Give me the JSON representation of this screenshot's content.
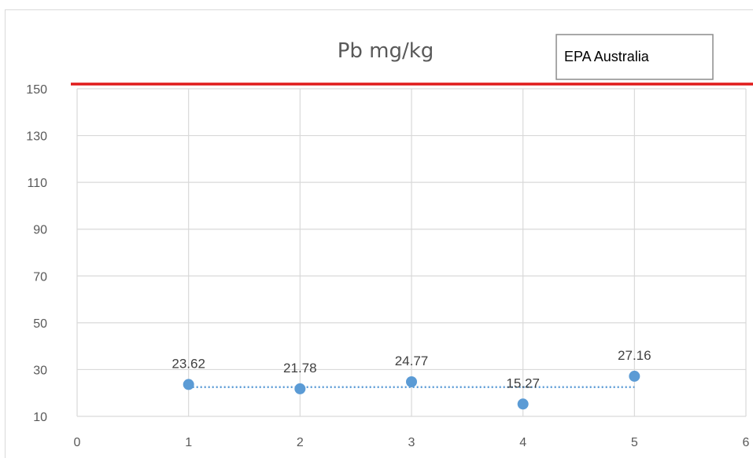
{
  "chart_data": {
    "type": "scatter",
    "title": "Pb mg/kg",
    "xlabel": "",
    "ylabel": "",
    "xlim": [
      0,
      6
    ],
    "ylim": [
      10,
      150
    ],
    "xticks": [
      0,
      1,
      2,
      3,
      4,
      5,
      6
    ],
    "yticks": [
      10,
      30,
      50,
      70,
      90,
      110,
      130,
      150
    ],
    "grid": true,
    "series": [
      {
        "x": [
          1,
          2,
          3,
          4,
          5
        ],
        "y": [
          23.62,
          21.78,
          24.77,
          15.27,
          27.16
        ],
        "labels": [
          "23.62",
          "21.78",
          "24.77",
          "15.27",
          "27.16"
        ],
        "color": "#5b9bd5"
      }
    ],
    "trendline": {
      "style": "dotted",
      "color": "#5b9bd5",
      "x": [
        1,
        5
      ],
      "y": [
        22.5,
        22.5
      ]
    },
    "reference_line": {
      "value": 152,
      "color": "#e01b1b",
      "label": "EPA Australia"
    },
    "colors": {
      "grid": "#d9d9d9",
      "axis_text": "#595959"
    }
  }
}
